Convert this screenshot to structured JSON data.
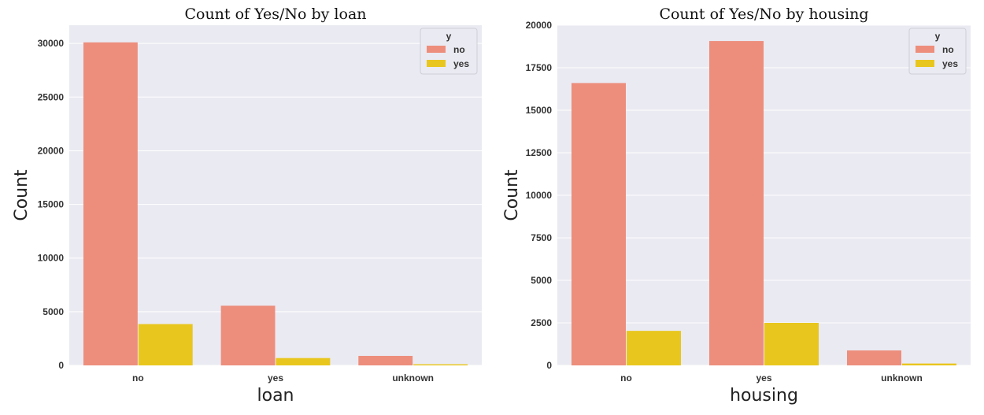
{
  "chart_data": [
    {
      "type": "bar",
      "title": "Count of Yes/No by loan",
      "xlabel": "loan",
      "ylabel": "Count",
      "categories": [
        "no",
        "yes",
        "unknown"
      ],
      "ylim": [
        0,
        31700
      ],
      "yticks": [
        0,
        5000,
        10000,
        15000,
        20000,
        25000,
        30000
      ],
      "grid": true,
      "legend": {
        "title": "y",
        "position": "top-right"
      },
      "series": [
        {
          "name": "no",
          "color": "#ED8E7C",
          "values": [
            30100,
            5565,
            883
          ]
        },
        {
          "name": "yes",
          "color": "#E9C61D",
          "values": [
            3850,
            683,
            107
          ]
        }
      ]
    },
    {
      "type": "bar",
      "title": "Count of Yes/No by housing",
      "xlabel": "housing",
      "ylabel": "Count",
      "categories": [
        "no",
        "yes",
        "unknown"
      ],
      "ylim": [
        0,
        20000
      ],
      "yticks": [
        0,
        2500,
        5000,
        7500,
        10000,
        12500,
        15000,
        17500,
        20000
      ],
      "grid": true,
      "legend": {
        "title": "y",
        "position": "top-right"
      },
      "series": [
        {
          "name": "no",
          "color": "#ED8E7C",
          "values": [
            16600,
            19070,
            880
          ]
        },
        {
          "name": "yes",
          "color": "#E9C61D",
          "values": [
            2030,
            2500,
            110
          ]
        }
      ]
    }
  ],
  "colors": {
    "plot_background": "#EAEAF2",
    "gridline": "#FFFFFF"
  }
}
